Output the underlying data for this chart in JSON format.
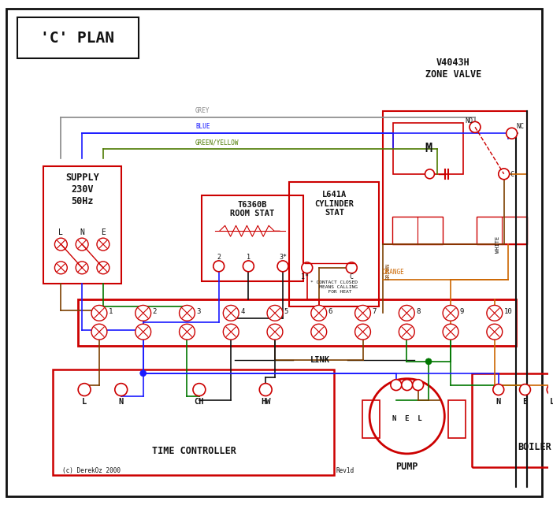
{
  "title": "'C' PLAN",
  "bg_color": "#ffffff",
  "red": "#cc0000",
  "blue": "#1a1aff",
  "green": "#007700",
  "brown": "#7B3F00",
  "grey": "#888888",
  "orange": "#cc6600",
  "black": "#111111",
  "green_yellow": "#4d7a00",
  "zone_valve_label": "V4043H\nZONE VALVE",
  "room_stat_label": "T6360B\nROOM STAT",
  "cylinder_stat_label": "L641A\nCYLINDER\nSTAT",
  "supply_label": "SUPPLY\n230V\n50Hz",
  "time_controller_label": "TIME CONTROLLER",
  "pump_label": "PUMP",
  "boiler_label": "BOILER",
  "link_label": "LINK",
  "copyright": "(c) DerekOz 2000",
  "rev": "Rev1d"
}
